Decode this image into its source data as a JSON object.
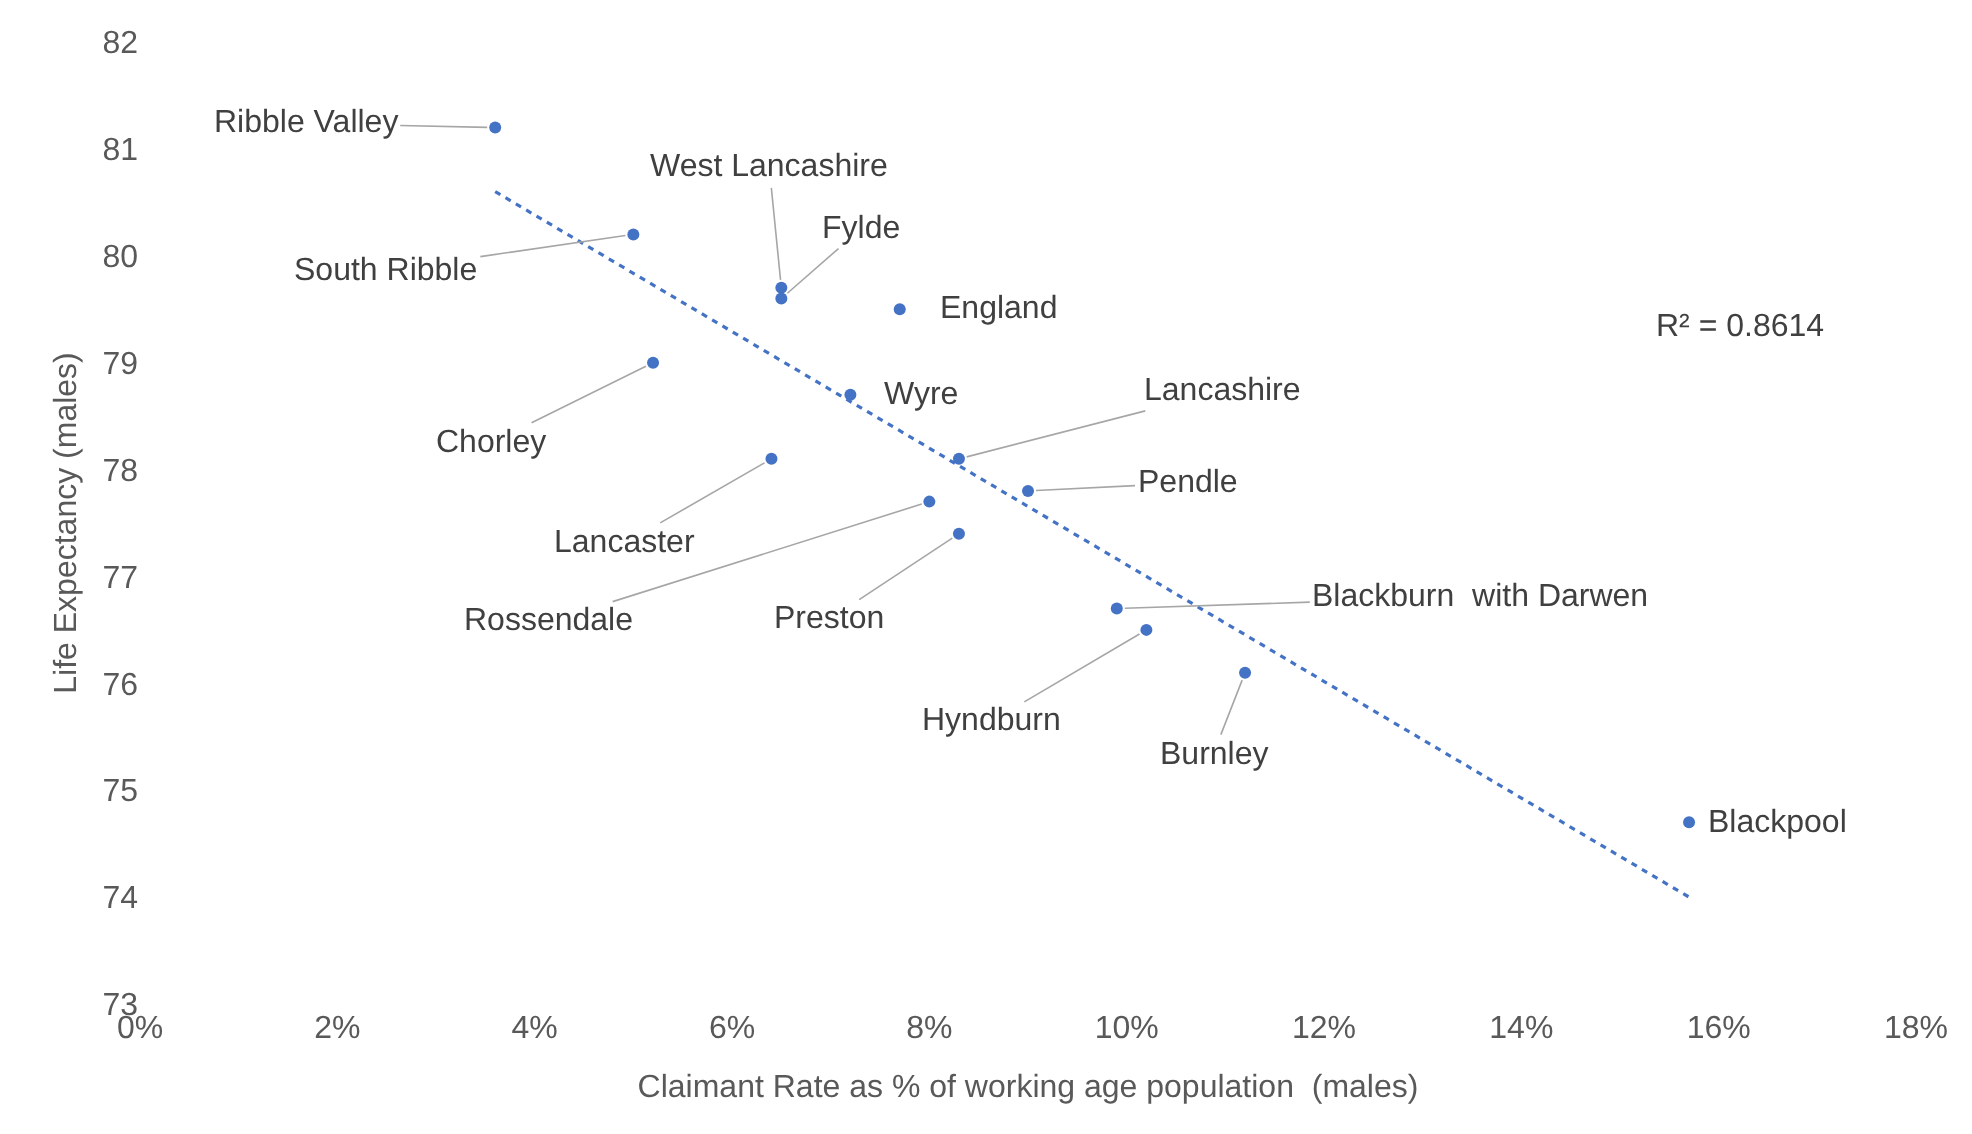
{
  "chart_data": {
    "type": "scatter",
    "xlabel": "Claimant Rate as % of working age population  (males)",
    "ylabel": "Life Expectancy (males)",
    "series": [
      {
        "color": "#4472c4",
        "marker": "circle",
        "x": [
          3.6,
          5.0,
          6.5,
          6.5,
          7.7,
          5.2,
          7.2,
          6.4,
          8.3,
          9.0,
          8.0,
          8.3,
          9.9,
          10.2,
          11.2,
          15.7
        ],
        "values": [
          81.2,
          80.2,
          79.7,
          79.6,
          79.5,
          79.0,
          78.7,
          78.1,
          78.1,
          77.8,
          77.7,
          77.4,
          76.7,
          76.5,
          76.1,
          74.7
        ]
      },
      {
        "type": "line",
        "color": "#4472c4",
        "line_style": "dotted",
        "x": [
          3.6,
          15.7
        ],
        "values": [
          80.6,
          74.0
        ]
      }
    ],
    "annotations": [
      {
        "text": "Ribble Valley",
        "x": 3.6,
        "y": 81.2
      },
      {
        "text": "South Ribble",
        "x": 5.0,
        "y": 80.2
      },
      {
        "text": "West Lancashire",
        "x": 6.5,
        "y": 79.7
      },
      {
        "text": "Fylde",
        "x": 6.5,
        "y": 79.6
      },
      {
        "text": "England",
        "x": 7.7,
        "y": 79.5
      },
      {
        "text": "Chorley",
        "x": 5.2,
        "y": 79.0
      },
      {
        "text": "Wyre",
        "x": 7.2,
        "y": 78.7
      },
      {
        "text": "Lancaster",
        "x": 6.4,
        "y": 78.1
      },
      {
        "text": "Lancashire",
        "x": 8.3,
        "y": 78.1
      },
      {
        "text": "Pendle",
        "x": 9.0,
        "y": 77.8
      },
      {
        "text": "Rossendale",
        "x": 8.0,
        "y": 77.7
      },
      {
        "text": "Preston",
        "x": 8.3,
        "y": 77.4
      },
      {
        "text": "Blackburn  with Darwen",
        "x": 9.9,
        "y": 76.7
      },
      {
        "text": "Hyndburn",
        "x": 10.2,
        "y": 76.5
      },
      {
        "text": "Burnley",
        "x": 11.2,
        "y": 76.1
      },
      {
        "text": "Blackpool",
        "x": 15.7,
        "y": 74.7
      },
      "R² = 0.8614"
    ],
    "xlim": [
      0,
      18
    ],
    "xticks": [
      {
        "value": 0,
        "label": "0%"
      },
      {
        "value": 2,
        "label": "2%"
      },
      {
        "value": 4,
        "label": "4%"
      },
      {
        "value": 6,
        "label": "6%"
      },
      {
        "value": 8,
        "label": "8%"
      },
      {
        "value": 10,
        "label": "10%"
      },
      {
        "value": 12,
        "label": "12%"
      },
      {
        "value": 14,
        "label": "14%"
      },
      {
        "value": 16,
        "label": "16%"
      },
      {
        "value": 18,
        "label": "18%"
      }
    ],
    "ylim": [
      73,
      82
    ],
    "yticks": [
      73,
      74,
      75,
      76,
      77,
      78,
      79,
      80,
      81,
      82
    ],
    "legend": false
  }
}
